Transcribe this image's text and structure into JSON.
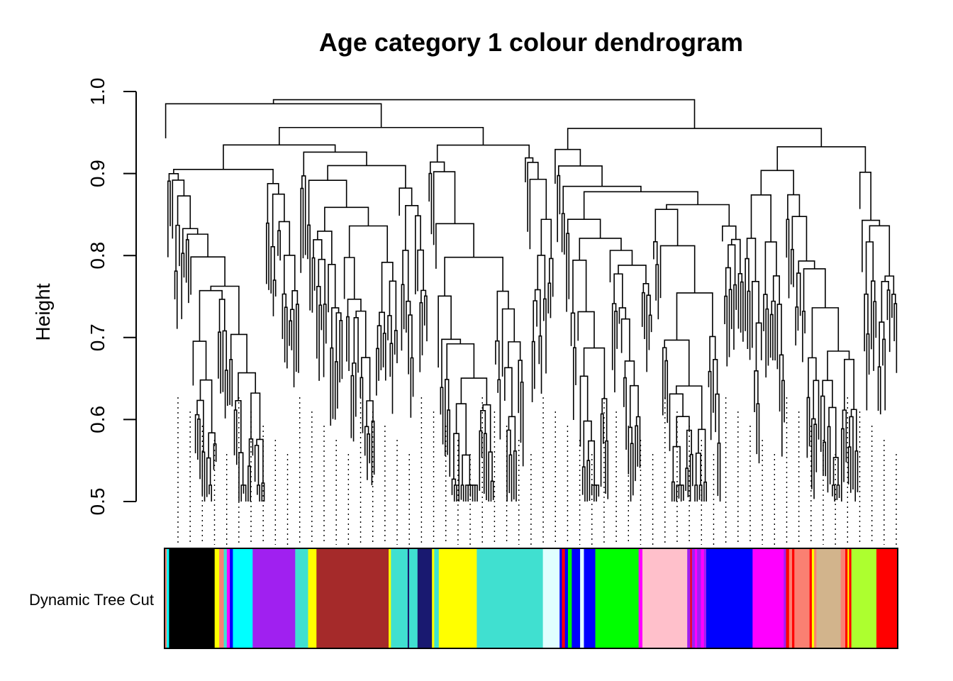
{
  "chart_data": {
    "type": "dendrogram",
    "title": "Age category 1 colour dendrogram",
    "ylabel": "Height",
    "xlabel": "",
    "ylim": [
      0.5,
      1.0
    ],
    "yticks": [
      "0.5",
      "0.6",
      "0.7",
      "0.8",
      "0.9",
      "1.0"
    ],
    "colour_bar_label": "Dynamic Tree Cut",
    "colour_bar_modules": [
      {
        "color": "#fa8072",
        "width": 0.003
      },
      {
        "color": "#00ffff",
        "width": 0.003
      },
      {
        "color": "#000000",
        "width": 0.06
      },
      {
        "color": "#ffff00",
        "width": 0.006
      },
      {
        "color": "#fa8072",
        "width": 0.006
      },
      {
        "color": "#40e0d0",
        "width": 0.004
      },
      {
        "color": "#ff00ff",
        "width": 0.004
      },
      {
        "color": "#0000ff",
        "width": 0.004
      },
      {
        "color": "#00ffff",
        "width": 0.026
      },
      {
        "color": "#a020f0",
        "width": 0.056
      },
      {
        "color": "#40e0d0",
        "width": 0.017
      },
      {
        "color": "#ffff00",
        "width": 0.011
      },
      {
        "color": "#a52a2a",
        "width": 0.095
      },
      {
        "color": "#ffff00",
        "width": 0.003
      },
      {
        "color": "#40e0d0",
        "width": 0.022
      },
      {
        "color": "#191970",
        "width": 0.002
      },
      {
        "color": "#40e0d0",
        "width": 0.011
      },
      {
        "color": "#191970",
        "width": 0.019
      },
      {
        "color": "#ffff00",
        "width": 0.003
      },
      {
        "color": "#40e0d0",
        "width": 0.006
      },
      {
        "color": "#ffff00",
        "width": 0.05
      },
      {
        "color": "#40e0d0",
        "width": 0.087
      },
      {
        "color": "#e0ffff",
        "width": 0.022
      },
      {
        "color": "#0000ff",
        "width": 0.003
      },
      {
        "color": "#ff0000",
        "width": 0.004
      },
      {
        "color": "#0000ff",
        "width": 0.004
      },
      {
        "color": "#00ff00",
        "width": 0.005
      },
      {
        "color": "#0000ff",
        "width": 0.011
      },
      {
        "color": "#e0ffff",
        "width": 0.005
      },
      {
        "color": "#0000ff",
        "width": 0.015
      },
      {
        "color": "#00ff00",
        "width": 0.057
      },
      {
        "color": "#ff00ff",
        "width": 0.005
      },
      {
        "color": "#ffc0cb",
        "width": 0.059
      },
      {
        "color": "#a020f0",
        "width": 0.004
      },
      {
        "color": "#ff0000",
        "width": 0.002
      },
      {
        "color": "#a020f0",
        "width": 0.004
      },
      {
        "color": "#ff00ff",
        "width": 0.003
      },
      {
        "color": "#a020f0",
        "width": 0.005
      },
      {
        "color": "#ff00ff",
        "width": 0.004
      },
      {
        "color": "#a020f0",
        "width": 0.003
      },
      {
        "color": "#0000ff",
        "width": 0.061
      },
      {
        "color": "#ff00ff",
        "width": 0.041
      },
      {
        "color": "#a020f0",
        "width": 0.003
      },
      {
        "color": "#ff0000",
        "width": 0.004
      },
      {
        "color": "#fa8072",
        "width": 0.004
      },
      {
        "color": "#ff0000",
        "width": 0.003
      },
      {
        "color": "#fa8072",
        "width": 0.02
      },
      {
        "color": "#ff0000",
        "width": 0.003
      },
      {
        "color": "#ffff00",
        "width": 0.003
      },
      {
        "color": "#fa8072",
        "width": 0.003
      },
      {
        "color": "#d2b48c",
        "width": 0.032
      },
      {
        "color": "#fa8072",
        "width": 0.006
      },
      {
        "color": "#ff0000",
        "width": 0.003
      },
      {
        "color": "#ffff00",
        "width": 0.002
      },
      {
        "color": "#ff0000",
        "width": 0.003
      },
      {
        "color": "#adff2f",
        "width": 0.033
      },
      {
        "color": "#ff0000",
        "width": 0.028
      }
    ]
  }
}
